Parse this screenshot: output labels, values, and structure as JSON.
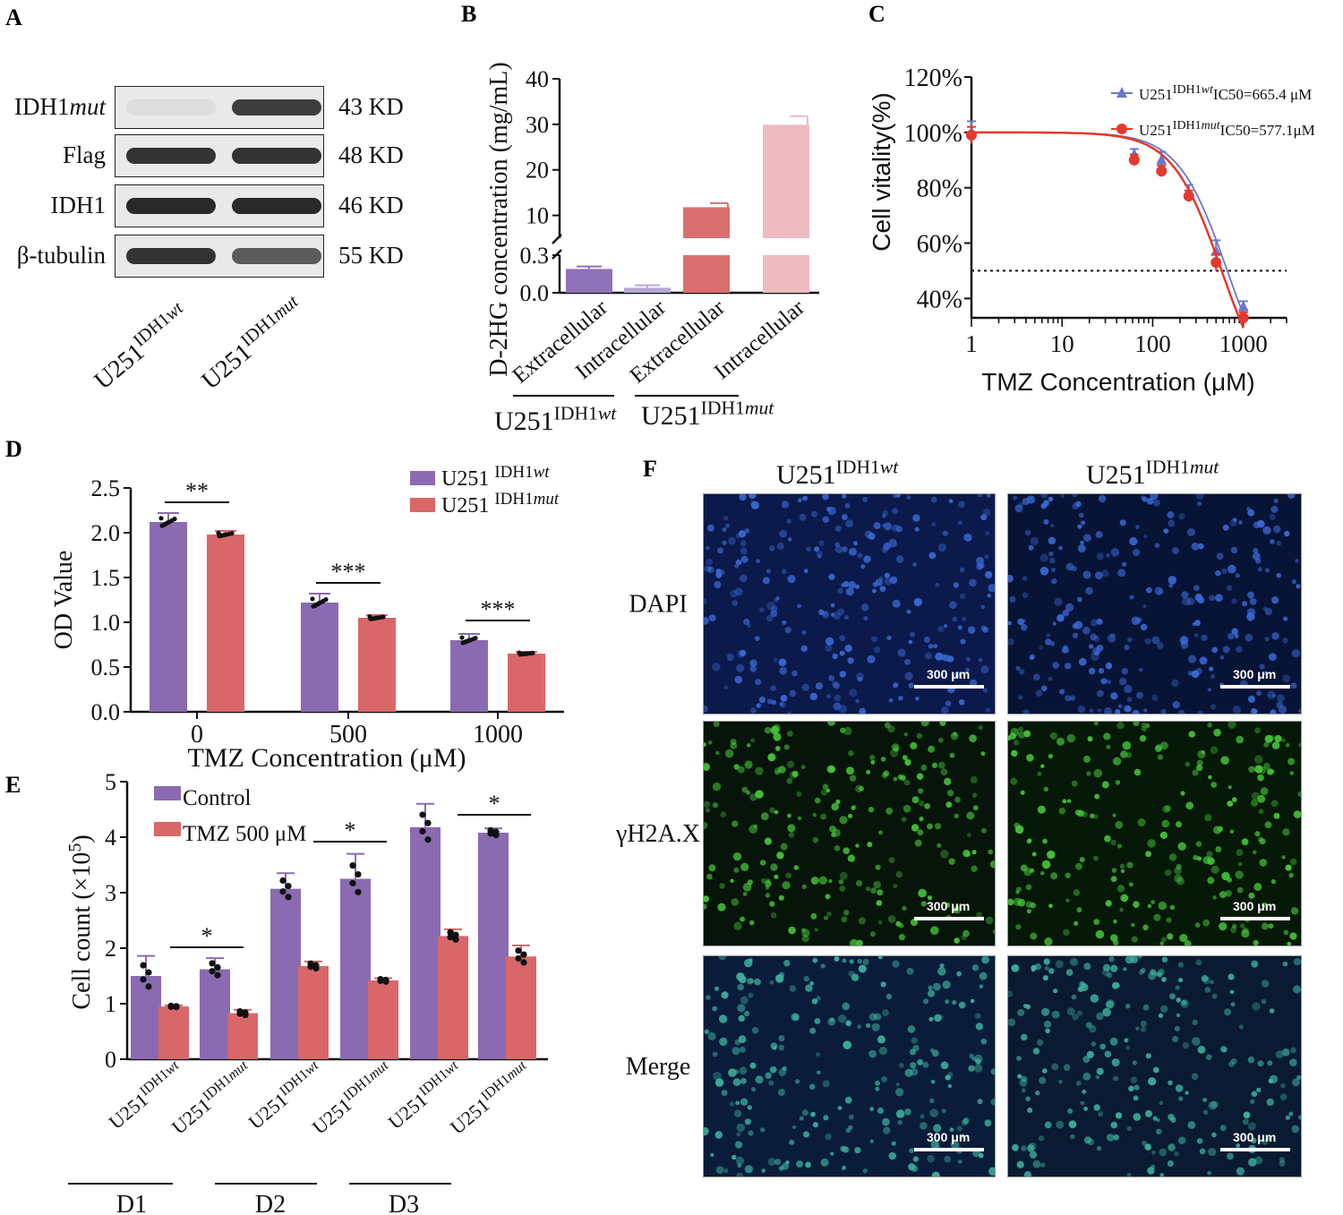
{
  "panels": {
    "a": {
      "letter": "A",
      "rows": [
        {
          "label": "IDH1",
          "label_italic": "mut",
          "kd": "43 KD",
          "bands": [
            0.05,
            0.85
          ]
        },
        {
          "label": "Flag",
          "label_italic": "",
          "kd": "48 KD",
          "bands": [
            0.9,
            0.9
          ]
        },
        {
          "label": "IDH1",
          "label_italic": "",
          "kd": "46 KD",
          "bands": [
            0.95,
            0.95
          ]
        },
        {
          "label": "β-tubulin",
          "label_italic": "",
          "kd": "55 KD",
          "bands": [
            0.9,
            0.7
          ]
        }
      ],
      "lanes": [
        {
          "base": "U251",
          "sup": "IDH1",
          "sup_italic": "wt"
        },
        {
          "base": "U251",
          "sup": "IDH1",
          "sup_italic": "mut"
        }
      ]
    },
    "b": {
      "letter": "B"
    },
    "c": {
      "letter": "C"
    },
    "d": {
      "letter": "D"
    },
    "e": {
      "letter": "E"
    },
    "f": {
      "letter": "F",
      "columns": [
        {
          "base": "U251",
          "sup": "IDH1",
          "sup_italic": "wt"
        },
        {
          "base": "U251",
          "sup": "IDH1",
          "sup_italic": "mut"
        }
      ],
      "rows": [
        "DAPI",
        "γH2A.X",
        "Merge"
      ],
      "scale_label": "300 μm"
    }
  },
  "chart_data": [
    {
      "panel": "B",
      "type": "bar",
      "ylabel": "D-2HG concentration (mg/mL)",
      "y_ticks_lower": [
        "0.0",
        "0.3"
      ],
      "y_ticks_upper": [
        "10",
        "20",
        "30",
        "40"
      ],
      "axis_break": [
        0.3,
        5
      ],
      "categories": [
        "Extracellular",
        "Intracellular",
        "Extracellular",
        "Intracellular"
      ],
      "groups": [
        {
          "base": "U251",
          "sup": "IDH1",
          "sup_italic": "wt"
        },
        {
          "base": "U251",
          "sup": "IDH1",
          "sup_italic": "mut"
        }
      ],
      "values": [
        0.19,
        0.04,
        11.8,
        29.9
      ],
      "errors": [
        0.02,
        0.02,
        0.9,
        1.9
      ],
      "colors": [
        "#8e72b8",
        "#b6a8d6",
        "#d9706f",
        "#eebbc1"
      ]
    },
    {
      "panel": "C",
      "type": "scatter",
      "xlabel": "TMZ Concentration (μM)",
      "ylabel": "Cell vitality(%)",
      "x_ticks": [
        "1",
        "10",
        "100",
        "1000"
      ],
      "y_ticks": [
        "40%",
        "60%",
        "80%",
        "100%",
        "120%"
      ],
      "xscale": "log",
      "xlim": [
        1,
        3000
      ],
      "ylim": [
        33,
        120
      ],
      "reference_line": 50,
      "series": [
        {
          "name_base": "U251",
          "name_sup": "IDH1",
          "name_sup_italic": "wt",
          "annotation": "IC50=665.4 μM",
          "color": "#6b77c9",
          "marker": "triangle",
          "x": [
            1,
            62.5,
            125,
            250,
            500,
            1000
          ],
          "y": [
            100,
            92,
            90,
            78,
            57,
            37
          ],
          "err": [
            4,
            2,
            3,
            3,
            4,
            2
          ],
          "ic50": 665.4
        },
        {
          "name_base": "U251",
          "name_sup": "IDH1",
          "name_sup_italic": "mut",
          "annotation": "IC50=577.1μM",
          "color": "#e23a2e",
          "marker": "circle",
          "x": [
            1,
            62.5,
            125,
            250,
            500,
            1000
          ],
          "y": [
            99,
            90,
            86,
            77,
            53,
            33
          ],
          "err": [
            3,
            2,
            2,
            2,
            3,
            2
          ],
          "ic50": 577.1
        }
      ]
    },
    {
      "panel": "D",
      "type": "bar",
      "xlabel": "TMZ Concentration (μM)",
      "ylabel": "OD Value",
      "categories": [
        "0",
        "500",
        "1000"
      ],
      "y_ticks": [
        "0.0",
        "0.5",
        "1.0",
        "1.5",
        "2.0",
        "2.5"
      ],
      "ylim": [
        0,
        2.5
      ],
      "significance": [
        "**",
        "***",
        "***"
      ],
      "series": [
        {
          "name_base": "U251 ",
          "name_sup": "IDH1",
          "name_sup_italic": "wt",
          "color": "#8a6bb1",
          "values": [
            2.12,
            1.22,
            0.8
          ],
          "errors": [
            0.1,
            0.1,
            0.07
          ]
        },
        {
          "name_base": "U251 ",
          "name_sup": "IDH1",
          "name_sup_italic": "mut",
          "color": "#d9676a",
          "values": [
            1.98,
            1.05,
            0.65
          ],
          "errors": [
            0.04,
            0.03,
            0.02
          ]
        }
      ]
    },
    {
      "panel": "E",
      "type": "bar",
      "ylabel": "Cell count (×10",
      "ylabel_sup": "5",
      "ylabel_end": ")",
      "y_ticks": [
        "0",
        "1",
        "2",
        "3",
        "4",
        "5"
      ],
      "ylim": [
        0,
        5
      ],
      "categories": [
        {
          "base": "U251",
          "sup": "IDH1",
          "sup_italic": "wt"
        },
        {
          "base": "U251",
          "sup": "IDH1",
          "sup_italic": "mut"
        },
        {
          "base": "U251",
          "sup": "IDH1",
          "sup_italic": "wt"
        },
        {
          "base": "U251",
          "sup": "IDH1",
          "sup_italic": "mut"
        },
        {
          "base": "U251",
          "sup": "IDH1",
          "sup_italic": "wt"
        },
        {
          "base": "U251",
          "sup": "IDH1",
          "sup_italic": "mut"
        }
      ],
      "day_groups": [
        "D1",
        "D2",
        "D3"
      ],
      "significance": [
        "*",
        "*",
        "*"
      ],
      "series": [
        {
          "name": "Control",
          "color": "#8a6bb1",
          "values": [
            1.5,
            1.62,
            3.07,
            3.25,
            4.18,
            4.08
          ],
          "errors": [
            0.36,
            0.2,
            0.28,
            0.45,
            0.42,
            0.08
          ]
        },
        {
          "name": "TMZ 500 μM",
          "color": "#d9676a",
          "values": [
            0.95,
            0.83,
            1.68,
            1.42,
            2.22,
            1.85
          ],
          "errors": [
            0.02,
            0.06,
            0.08,
            0.04,
            0.12,
            0.2
          ]
        }
      ]
    }
  ]
}
